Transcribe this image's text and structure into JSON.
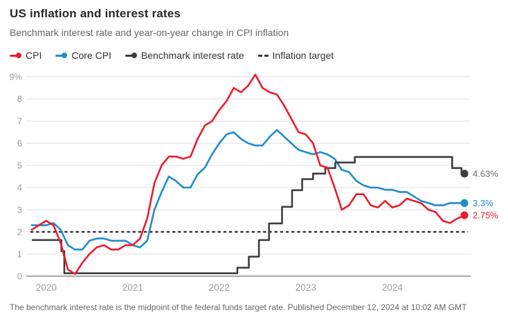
{
  "header": {
    "title": "US inflation and interest rates",
    "subtitle": "Benchmark interest rate and year-on-year change in CPI inflation"
  },
  "legend": [
    {
      "label": "CPI",
      "color": "#ed1b2c",
      "marker": "line-dot"
    },
    {
      "label": "Core CPI",
      "color": "#1d8ccd",
      "marker": "line-dot"
    },
    {
      "label": "Benchmark interest rate",
      "color": "#3d3d3d",
      "marker": "line-dot"
    },
    {
      "label": "Inflation target",
      "color": "#3a3a3a",
      "marker": "dashes"
    }
  ],
  "footer": {
    "note": "The benchmark interest rate is the midpoint of the federal funds target rate. Published December 12, 2024 at 10:02 AM GMT"
  },
  "chart_data": {
    "type": "line",
    "x_start_month": "2019-11",
    "x_end_month": "2024-11",
    "months_span": 60,
    "ylim": [
      0,
      9.3
    ],
    "grid": "horizontal",
    "legend_position": "top",
    "yticks": [
      {
        "v": 0,
        "label": "0"
      },
      {
        "v": 1,
        "label": "1"
      },
      {
        "v": 2,
        "label": "2"
      },
      {
        "v": 3,
        "label": "3"
      },
      {
        "v": 4,
        "label": "4"
      },
      {
        "v": 5,
        "label": "5"
      },
      {
        "v": 6,
        "label": "6"
      },
      {
        "v": 7,
        "label": "7"
      },
      {
        "v": 8,
        "label": "8"
      },
      {
        "v": 9,
        "label": "9%"
      }
    ],
    "xticks": [
      {
        "t": 2,
        "label": "2020"
      },
      {
        "t": 14,
        "label": "2021"
      },
      {
        "t": 26,
        "label": "2022"
      },
      {
        "t": 38,
        "label": "2023"
      },
      {
        "t": 50,
        "label": "2024"
      }
    ],
    "inflation_target": {
      "value": 2,
      "style": "dashed",
      "color": "#333333"
    },
    "series": [
      {
        "name": "CPI",
        "color": "#ed1b2c",
        "end_label": "2.75%",
        "end_value": 2.75,
        "values": [
          2.1,
          2.3,
          2.5,
          2.3,
          1.5,
          0.3,
          0.1,
          0.6,
          1.0,
          1.3,
          1.4,
          1.2,
          1.2,
          1.4,
          1.4,
          1.7,
          2.6,
          4.2,
          5.0,
          5.4,
          5.4,
          5.3,
          5.4,
          6.2,
          6.8,
          7.0,
          7.5,
          7.9,
          8.5,
          8.3,
          8.6,
          9.1,
          8.5,
          8.3,
          8.2,
          7.7,
          7.1,
          6.5,
          6.4,
          6.0,
          5.0,
          4.9,
          4.0,
          3.0,
          3.2,
          3.7,
          3.7,
          3.2,
          3.1,
          3.4,
          3.1,
          3.2,
          3.5,
          3.4,
          3.3,
          3.0,
          2.9,
          2.5,
          2.4,
          2.6,
          2.75
        ]
      },
      {
        "name": "Core CPI",
        "color": "#1d8ccd",
        "end_label": "3.3%",
        "end_value": 3.3,
        "values": [
          2.3,
          2.3,
          2.3,
          2.4,
          2.1,
          1.4,
          1.2,
          1.2,
          1.6,
          1.7,
          1.7,
          1.6,
          1.6,
          1.6,
          1.4,
          1.3,
          1.6,
          3.0,
          3.8,
          4.5,
          4.3,
          4.0,
          4.0,
          4.6,
          4.9,
          5.5,
          6.0,
          6.4,
          6.5,
          6.2,
          6.0,
          5.9,
          5.9,
          6.3,
          6.6,
          6.3,
          6.0,
          5.7,
          5.6,
          5.5,
          5.6,
          5.5,
          5.3,
          4.8,
          4.7,
          4.3,
          4.1,
          4.0,
          4.0,
          3.9,
          3.9,
          3.8,
          3.8,
          3.6,
          3.4,
          3.3,
          3.2,
          3.2,
          3.3,
          3.3,
          3.3
        ]
      },
      {
        "name": "Benchmark interest rate",
        "color": "#3d3d3d",
        "type": "step",
        "end_label": "4.63%",
        "end_label_color": "#6b6b6b",
        "end_value": 4.63,
        "points": [
          [
            0,
            1.63
          ],
          [
            4.1,
            1.13
          ],
          [
            4.5,
            0.13
          ],
          [
            28.5,
            0.38
          ],
          [
            30.1,
            0.88
          ],
          [
            31.5,
            1.63
          ],
          [
            32.9,
            2.38
          ],
          [
            34.7,
            3.13
          ],
          [
            36.1,
            3.88
          ],
          [
            37.5,
            4.38
          ],
          [
            39.0,
            4.63
          ],
          [
            40.7,
            4.88
          ],
          [
            42.1,
            5.13
          ],
          [
            44.8,
            5.38
          ],
          [
            58.3,
            4.88
          ],
          [
            59.6,
            4.63
          ]
        ]
      }
    ]
  }
}
